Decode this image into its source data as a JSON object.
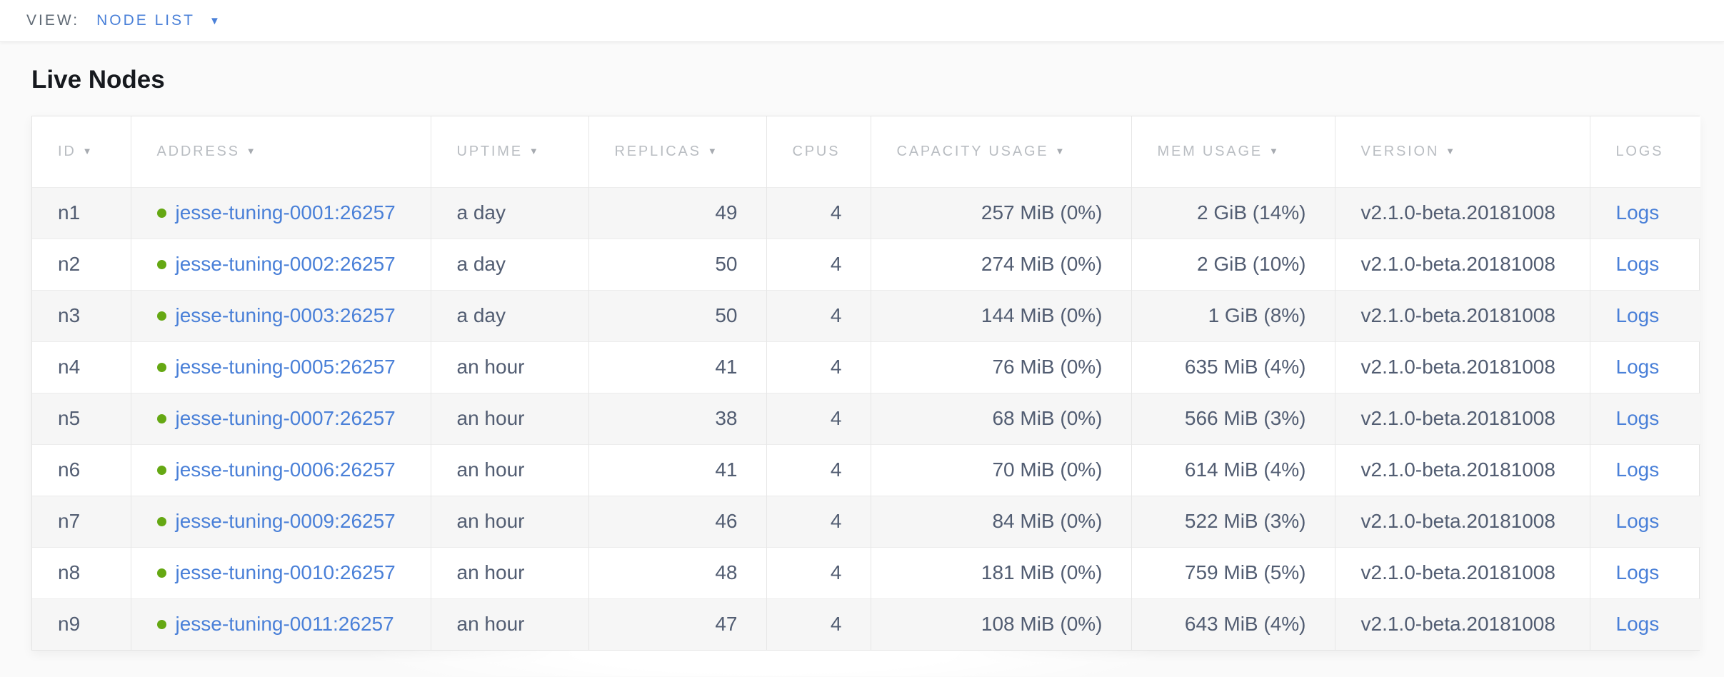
{
  "toolbar": {
    "view_label": "VIEW:",
    "view_value": "NODE LIST",
    "chevron_icon": "▼"
  },
  "page": {
    "title": "Live Nodes"
  },
  "colors": {
    "accent_blue": "#4a80d8",
    "status_green": "#65a813",
    "header_gray": "#b9bdc2",
    "text_slate": "#525d72"
  },
  "table": {
    "sort_icon": "▼",
    "columns": [
      {
        "key": "id",
        "label": "ID",
        "sortable": true,
        "align": "left"
      },
      {
        "key": "address",
        "label": "ADDRESS",
        "sortable": true,
        "align": "left"
      },
      {
        "key": "uptime",
        "label": "UPTIME",
        "sortable": true,
        "align": "left"
      },
      {
        "key": "replicas",
        "label": "REPLICAS",
        "sortable": true,
        "align": "right"
      },
      {
        "key": "cpus",
        "label": "CPUS",
        "sortable": false,
        "align": "right"
      },
      {
        "key": "capacity_usage",
        "label": "CAPACITY USAGE",
        "sortable": true,
        "align": "right"
      },
      {
        "key": "mem_usage",
        "label": "MEM USAGE",
        "sortable": true,
        "align": "right"
      },
      {
        "key": "version",
        "label": "VERSION",
        "sortable": true,
        "align": "left"
      },
      {
        "key": "logs",
        "label": "LOGS",
        "sortable": false,
        "align": "left"
      }
    ],
    "rows": [
      {
        "id": "n1",
        "status": "healthy",
        "address": "jesse-tuning-0001:26257",
        "uptime": "a day",
        "replicas": "49",
        "cpus": "4",
        "capacity_usage": "257 MiB (0%)",
        "mem_usage": "2 GiB (14%)",
        "version": "v2.1.0-beta.20181008",
        "logs": "Logs"
      },
      {
        "id": "n2",
        "status": "healthy",
        "address": "jesse-tuning-0002:26257",
        "uptime": "a day",
        "replicas": "50",
        "cpus": "4",
        "capacity_usage": "274 MiB (0%)",
        "mem_usage": "2 GiB (10%)",
        "version": "v2.1.0-beta.20181008",
        "logs": "Logs"
      },
      {
        "id": "n3",
        "status": "healthy",
        "address": "jesse-tuning-0003:26257",
        "uptime": "a day",
        "replicas": "50",
        "cpus": "4",
        "capacity_usage": "144 MiB (0%)",
        "mem_usage": "1 GiB (8%)",
        "version": "v2.1.0-beta.20181008",
        "logs": "Logs"
      },
      {
        "id": "n4",
        "status": "healthy",
        "address": "jesse-tuning-0005:26257",
        "uptime": "an hour",
        "replicas": "41",
        "cpus": "4",
        "capacity_usage": "76 MiB (0%)",
        "mem_usage": "635 MiB (4%)",
        "version": "v2.1.0-beta.20181008",
        "logs": "Logs"
      },
      {
        "id": "n5",
        "status": "healthy",
        "address": "jesse-tuning-0007:26257",
        "uptime": "an hour",
        "replicas": "38",
        "cpus": "4",
        "capacity_usage": "68 MiB (0%)",
        "mem_usage": "566 MiB (3%)",
        "version": "v2.1.0-beta.20181008",
        "logs": "Logs"
      },
      {
        "id": "n6",
        "status": "healthy",
        "address": "jesse-tuning-0006:26257",
        "uptime": "an hour",
        "replicas": "41",
        "cpus": "4",
        "capacity_usage": "70 MiB (0%)",
        "mem_usage": "614 MiB (4%)",
        "version": "v2.1.0-beta.20181008",
        "logs": "Logs"
      },
      {
        "id": "n7",
        "status": "healthy",
        "address": "jesse-tuning-0009:26257",
        "uptime": "an hour",
        "replicas": "46",
        "cpus": "4",
        "capacity_usage": "84 MiB (0%)",
        "mem_usage": "522 MiB (3%)",
        "version": "v2.1.0-beta.20181008",
        "logs": "Logs"
      },
      {
        "id": "n8",
        "status": "healthy",
        "address": "jesse-tuning-0010:26257",
        "uptime": "an hour",
        "replicas": "48",
        "cpus": "4",
        "capacity_usage": "181 MiB (0%)",
        "mem_usage": "759 MiB (5%)",
        "version": "v2.1.0-beta.20181008",
        "logs": "Logs"
      },
      {
        "id": "n9",
        "status": "healthy",
        "address": "jesse-tuning-0011:26257",
        "uptime": "an hour",
        "replicas": "47",
        "cpus": "4",
        "capacity_usage": "108 MiB (0%)",
        "mem_usage": "643 MiB (4%)",
        "version": "v2.1.0-beta.20181008",
        "logs": "Logs"
      }
    ]
  }
}
